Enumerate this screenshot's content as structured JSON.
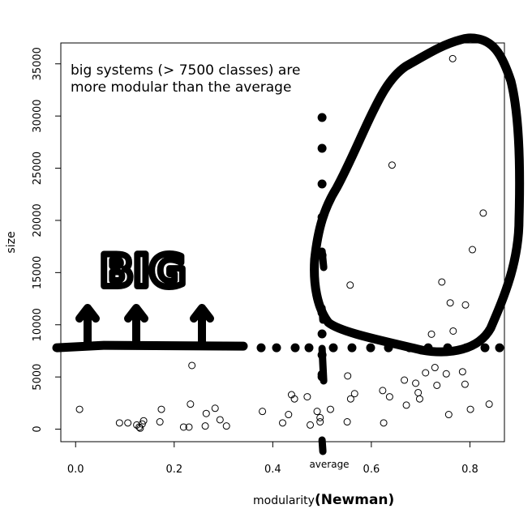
{
  "chart_data": {
    "type": "scatter",
    "xlabel": "modularity",
    "xlabel_suffix": "(Newman)",
    "ylabel": "size",
    "xlim": [
      -0.03,
      0.87
    ],
    "ylim": [
      -1200,
      37000
    ],
    "x_ticks": [
      {
        "value": 0.0,
        "label": "0.0"
      },
      {
        "value": 0.2,
        "label": "0.2"
      },
      {
        "value": 0.4,
        "label": "0.4"
      },
      {
        "value": 0.6,
        "label": "0.6"
      },
      {
        "value": 0.8,
        "label": "0.8"
      }
    ],
    "y_ticks": [
      {
        "value": 0,
        "label": "0"
      },
      {
        "value": 5000,
        "label": "5000"
      },
      {
        "value": 10000,
        "label": "10000"
      },
      {
        "value": 15000,
        "label": "15000"
      },
      {
        "value": 20000,
        "label": "20000"
      },
      {
        "value": 25000,
        "label": "25000"
      },
      {
        "value": 30000,
        "label": "30000"
      },
      {
        "value": 35000,
        "label": "35000"
      }
    ],
    "annotation_line1": "big systems (> 7500 classes) are",
    "annotation_line2": "more modular than the average",
    "big_label": "BIG",
    "average_label": "average",
    "average_x": 0.5,
    "threshold_y": 7800,
    "points": [
      [
        0.765,
        35500
      ],
      [
        0.642,
        25300
      ],
      [
        0.827,
        20700
      ],
      [
        0.805,
        17200
      ],
      [
        0.557,
        13800
      ],
      [
        0.743,
        14100
      ],
      [
        0.76,
        12100
      ],
      [
        0.791,
        11900
      ],
      [
        0.766,
        9400
      ],
      [
        0.722,
        9100
      ],
      [
        0.236,
        6100
      ],
      [
        0.552,
        5100
      ],
      [
        0.667,
        4700
      ],
      [
        0.69,
        4400
      ],
      [
        0.71,
        5400
      ],
      [
        0.729,
        5900
      ],
      [
        0.733,
        4200
      ],
      [
        0.752,
        5300
      ],
      [
        0.785,
        5500
      ],
      [
        0.79,
        4300
      ],
      [
        0.623,
        3700
      ],
      [
        0.637,
        3100
      ],
      [
        0.695,
        3500
      ],
      [
        0.698,
        2900
      ],
      [
        0.671,
        2300
      ],
      [
        0.566,
        3400
      ],
      [
        0.558,
        2900
      ],
      [
        0.438,
        3300
      ],
      [
        0.444,
        2900
      ],
      [
        0.47,
        3100
      ],
      [
        0.839,
        2400
      ],
      [
        0.801,
        1900
      ],
      [
        0.757,
        1400
      ],
      [
        0.008,
        1900
      ],
      [
        0.174,
        1900
      ],
      [
        0.233,
        2400
      ],
      [
        0.265,
        1500
      ],
      [
        0.283,
        2000
      ],
      [
        0.379,
        1700
      ],
      [
        0.432,
        1400
      ],
      [
        0.517,
        1900
      ],
      [
        0.49,
        1700
      ],
      [
        0.496,
        1100
      ],
      [
        0.551,
        700
      ],
      [
        0.625,
        600
      ],
      [
        0.476,
        400
      ],
      [
        0.42,
        600
      ],
      [
        0.089,
        600
      ],
      [
        0.106,
        600
      ],
      [
        0.124,
        400
      ],
      [
        0.129,
        200
      ],
      [
        0.131,
        100
      ],
      [
        0.135,
        500
      ],
      [
        0.138,
        800
      ],
      [
        0.171,
        700
      ],
      [
        0.219,
        200
      ],
      [
        0.23,
        200
      ],
      [
        0.263,
        300
      ],
      [
        0.293,
        900
      ],
      [
        0.306,
        300
      ],
      [
        0.496,
        700
      ]
    ]
  }
}
